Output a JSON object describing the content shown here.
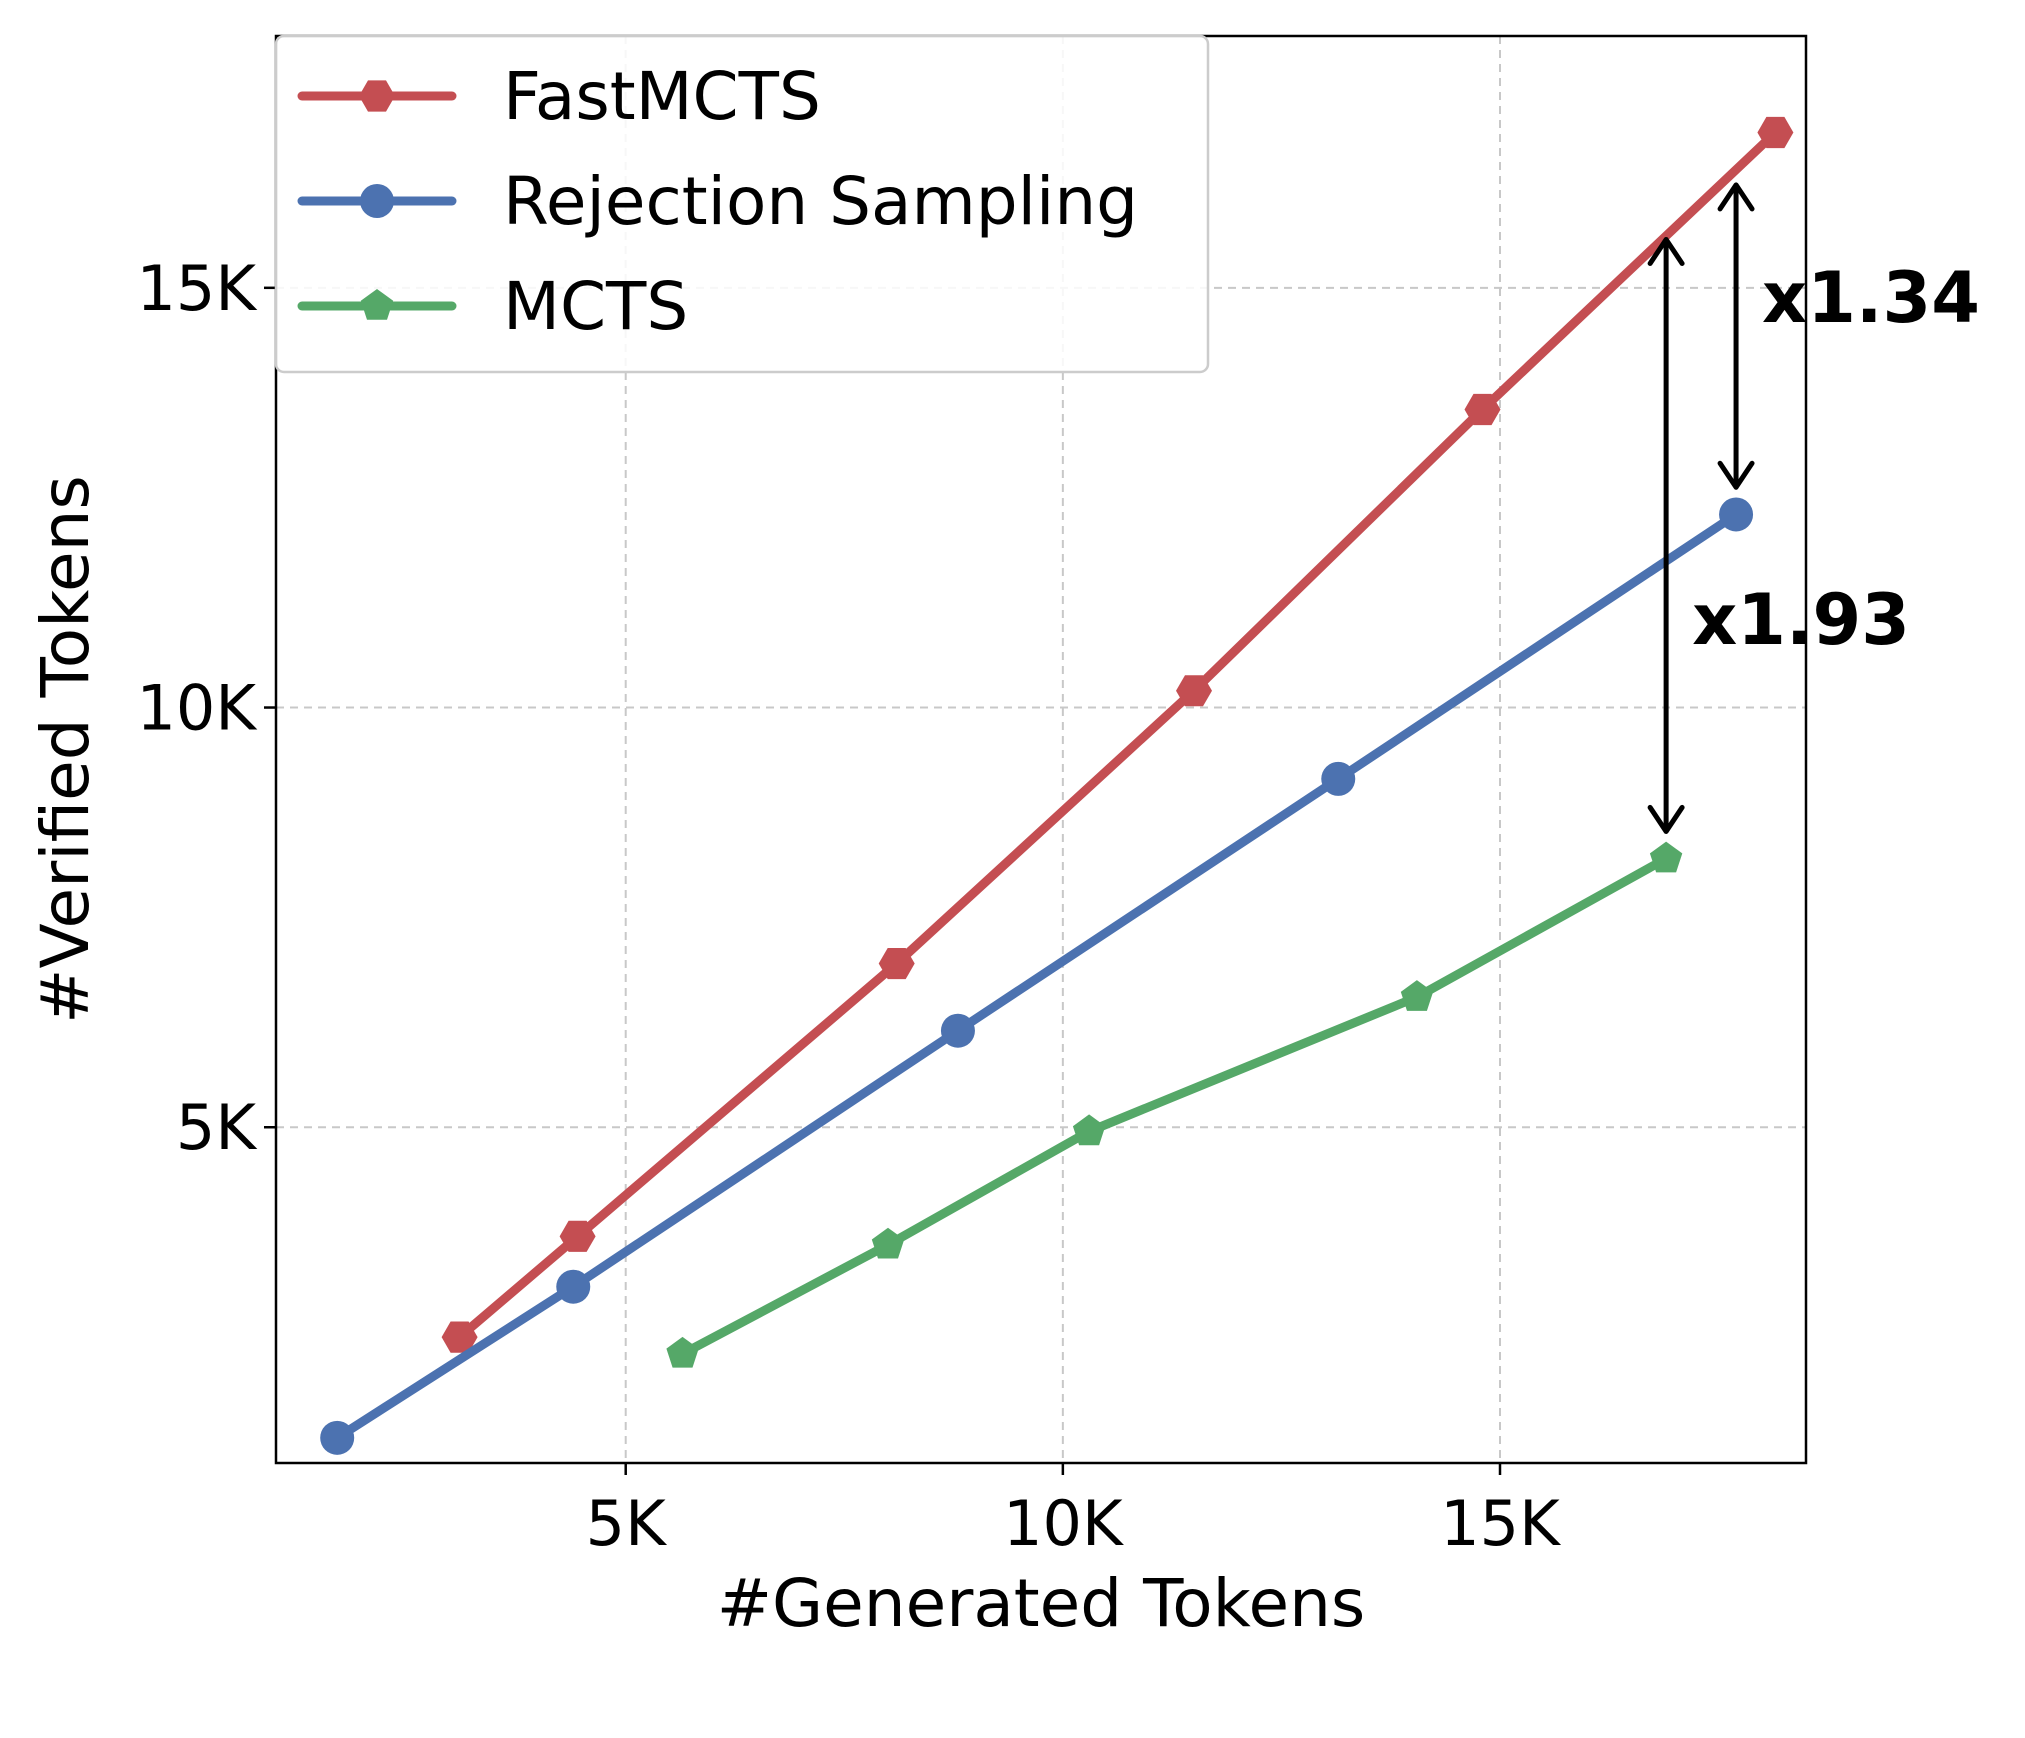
{
  "chart_data": {
    "type": "line",
    "xlabel": "#Generated Tokens",
    "ylabel": "#Verified Tokens",
    "xlim": [
      1000,
      18500
    ],
    "ylim": [
      1000,
      18000
    ],
    "x_ticks": [
      5000,
      10000,
      15000
    ],
    "x_tick_labels": [
      "5K",
      "10K",
      "15K"
    ],
    "y_ticks": [
      5000,
      10000,
      15000
    ],
    "y_tick_labels": [
      "5K",
      "10K",
      "15K"
    ],
    "grid": true,
    "legend_position": "top-left",
    "series": [
      {
        "name": "FastMCTS",
        "color": "#c44e52",
        "marker": "hexagon",
        "x": [
          3100,
          4450,
          8100,
          11500,
          14800,
          18150
        ],
        "y": [
          2500,
          3700,
          6950,
          10200,
          13550,
          16850
        ]
      },
      {
        "name": "Rejection Sampling",
        "color": "#4c72b0",
        "marker": "circle",
        "x": [
          1700,
          4400,
          8800,
          13150,
          17700
        ],
        "y": [
          1300,
          3100,
          6150,
          9150,
          12300
        ]
      },
      {
        "name": "MCTS",
        "color": "#55a868",
        "marker": "pentagon",
        "x": [
          5650,
          8000,
          10300,
          14050,
          16900
        ],
        "y": [
          2300,
          3600,
          4950,
          6550,
          8200
        ]
      }
    ],
    "annotations": [
      {
        "text": "x1.34",
        "x": 17700,
        "y_from": 16250,
        "y_to": 12600
      },
      {
        "text": "x1.93",
        "x": 16900,
        "y_from": 15600,
        "y_to": 8500
      }
    ]
  }
}
